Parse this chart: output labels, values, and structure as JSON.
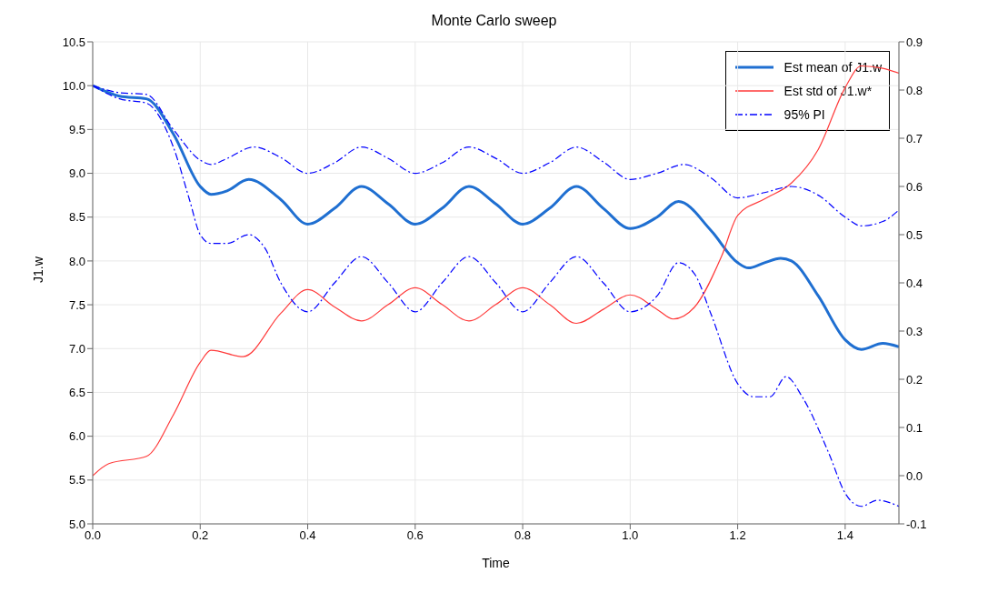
{
  "chart_data": {
    "type": "line",
    "title": "Monte Carlo sweep",
    "xlabel": "Time",
    "ylabel": "J1.w",
    "xlim": [
      0,
      1.5
    ],
    "xticks": [
      {
        "value": 0,
        "label": "0.0"
      },
      0.2,
      0.4,
      0.6,
      0.8,
      {
        "value": 1,
        "label": "1.0"
      },
      1.2,
      1.4
    ],
    "ylim": [
      5,
      10.5
    ],
    "yticks": [
      {
        "value": 5,
        "label": "5.0"
      },
      5.5,
      {
        "value": 6,
        "label": "6.0"
      },
      6.5,
      {
        "value": 7,
        "label": "7.0"
      },
      7.5,
      {
        "value": 8,
        "label": "8.0"
      },
      8.5,
      {
        "value": 9,
        "label": "9.0"
      },
      9.5,
      {
        "value": 10,
        "label": "10.0"
      },
      10.5
    ],
    "y2lim": [
      -0.1,
      0.9
    ],
    "y2ticks": [
      -0.1,
      {
        "value": 0,
        "label": "0.0"
      },
      0.1,
      0.2,
      0.3,
      0.4,
      0.5,
      0.6,
      0.7,
      0.8,
      0.9
    ],
    "grid": true,
    "legend": "top right",
    "marker": "none",
    "series": [
      {
        "name": "Est mean of J1.w",
        "color": "#1f6fd1",
        "line_style": "solid",
        "x": [
          0,
          0.05,
          0.1,
          0.15,
          0.2,
          0.22,
          0.25,
          0.29,
          0.35,
          0.4,
          0.45,
          0.5,
          0.55,
          0.6,
          0.65,
          0.7,
          0.75,
          0.8,
          0.85,
          0.9,
          0.95,
          1.0,
          1.05,
          1.09,
          1.15,
          1.2,
          1.22,
          1.25,
          1.28,
          1.3,
          1.35,
          1.4,
          1.43,
          1.47,
          1.5
        ],
        "values": [
          10.0,
          9.88,
          9.85,
          9.45,
          8.85,
          8.76,
          8.8,
          8.93,
          8.7,
          8.42,
          8.6,
          8.85,
          8.65,
          8.42,
          8.6,
          8.85,
          8.65,
          8.42,
          8.6,
          8.85,
          8.6,
          8.37,
          8.5,
          8.68,
          8.35,
          7.98,
          7.92,
          7.98,
          8.03,
          8.0,
          7.6,
          7.1,
          6.99,
          7.06,
          7.02
        ]
      },
      {
        "name": "Est std of J1.w*",
        "color": "#ff3b3b",
        "line_style": "solid",
        "axis": "y2",
        "x": [
          0,
          0.03,
          0.1,
          0.15,
          0.2,
          0.22,
          0.28,
          0.35,
          0.4,
          0.45,
          0.5,
          0.55,
          0.6,
          0.65,
          0.7,
          0.75,
          0.8,
          0.85,
          0.9,
          0.95,
          1.0,
          1.05,
          1.08,
          1.12,
          1.17,
          1.2,
          1.25,
          1.3,
          1.35,
          1.4,
          1.43,
          1.47,
          1.5
        ],
        "values": [
          0.0,
          0.025,
          0.04,
          0.126,
          0.235,
          0.26,
          0.247,
          0.337,
          0.386,
          0.35,
          0.321,
          0.355,
          0.39,
          0.355,
          0.321,
          0.355,
          0.39,
          0.355,
          0.316,
          0.345,
          0.375,
          0.345,
          0.325,
          0.35,
          0.455,
          0.54,
          0.574,
          0.607,
          0.677,
          0.805,
          0.85,
          0.845,
          0.835
        ]
      },
      {
        "name": "95% PI",
        "color": "#0000ff",
        "line_style": "dashed",
        "x": [
          0,
          0.05,
          0.1,
          0.15,
          0.2,
          0.22,
          0.25,
          0.3,
          0.35,
          0.4,
          0.45,
          0.5,
          0.55,
          0.6,
          0.65,
          0.7,
          0.75,
          0.8,
          0.85,
          0.9,
          0.95,
          1.0,
          1.05,
          1.1,
          1.15,
          1.2,
          1.25,
          1.3,
          1.35,
          1.4,
          1.43,
          1.47,
          1.5
        ],
        "values": [
          10.0,
          9.92,
          9.9,
          9.5,
          9.15,
          9.1,
          9.17,
          9.3,
          9.18,
          9.0,
          9.12,
          9.3,
          9.17,
          9.0,
          9.12,
          9.3,
          9.17,
          9.0,
          9.12,
          9.3,
          9.13,
          8.93,
          9.0,
          9.1,
          8.95,
          8.72,
          8.78,
          8.85,
          8.75,
          8.5,
          8.4,
          8.45,
          8.58
        ]
      },
      {
        "color": "#0000ff",
        "line_style": "dashed",
        "x": [
          0,
          0.05,
          0.1,
          0.15,
          0.18,
          0.2,
          0.22,
          0.25,
          0.29,
          0.32,
          0.35,
          0.4,
          0.45,
          0.5,
          0.55,
          0.6,
          0.65,
          0.7,
          0.75,
          0.8,
          0.85,
          0.9,
          0.95,
          1.0,
          1.05,
          1.09,
          1.12,
          1.15,
          1.2,
          1.23,
          1.26,
          1.29,
          1.32,
          1.37,
          1.4,
          1.43,
          1.46,
          1.5
        ],
        "values": [
          10.0,
          9.85,
          9.8,
          9.3,
          8.7,
          8.3,
          8.2,
          8.2,
          8.3,
          8.15,
          7.75,
          7.42,
          7.75,
          8.05,
          7.75,
          7.42,
          7.75,
          8.05,
          7.75,
          7.42,
          7.75,
          8.05,
          7.75,
          7.42,
          7.6,
          7.98,
          7.85,
          7.4,
          6.6,
          6.45,
          6.45,
          6.68,
          6.45,
          5.8,
          5.35,
          5.2,
          5.27,
          5.2
        ]
      }
    ]
  }
}
